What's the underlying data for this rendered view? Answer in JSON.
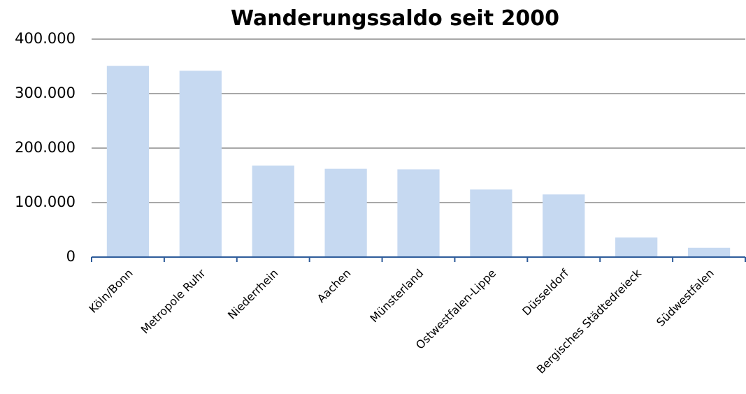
{
  "chart_data": {
    "type": "bar",
    "title": "Wanderungssaldo seit 2000",
    "categories": [
      "Köln/Bonn",
      "Metropole Ruhr",
      "Niederrhein",
      "Aachen",
      "Münsterland",
      "Ostwestfalen-Lippe",
      "Düsseldorf",
      "Bergisches Städtedreieck",
      "Südwestfalen"
    ],
    "values": [
      351000,
      342000,
      168000,
      162000,
      161000,
      124000,
      115000,
      36000,
      17000
    ],
    "color": "#c6d9f1",
    "ylim": [
      0,
      400000
    ],
    "yticks": [
      0,
      {
        "value": 100000,
        "label": "100.000"
      },
      {
        "value": 200000,
        "label": "200.000"
      },
      {
        "value": 300000,
        "label": "300.000"
      },
      {
        "value": 400000,
        "label": "400.000"
      }
    ],
    "grid": true
  }
}
